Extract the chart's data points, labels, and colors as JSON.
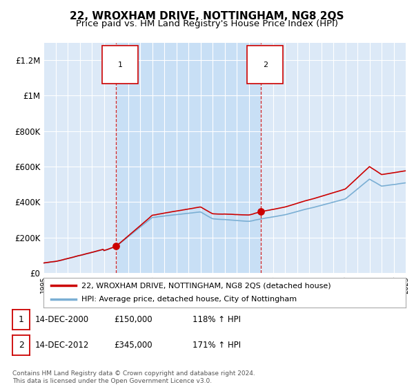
{
  "title": "22, WROXHAM DRIVE, NOTTINGHAM, NG8 2QS",
  "subtitle": "Price paid vs. HM Land Registry's House Price Index (HPI)",
  "ylim": [
    0,
    1300000
  ],
  "yticks": [
    0,
    200000,
    400000,
    600000,
    800000,
    1000000,
    1200000
  ],
  "ytick_labels": [
    "£0",
    "£200K",
    "£400K",
    "£600K",
    "£800K",
    "£1M",
    "£1.2M"
  ],
  "x_start_year": 1995,
  "x_end_year": 2025,
  "background_color": "#ffffff",
  "plot_bg_color": "#dce9f7",
  "plot_bg_between": "#c8dff5",
  "grid_color": "#ffffff",
  "sale1_year": 2001.0,
  "sale1_price": 150000,
  "sale2_year": 2013.0,
  "sale2_price": 345000,
  "property_line_color": "#cc0000",
  "hpi_line_color": "#7bafd4",
  "legend_property": "22, WROXHAM DRIVE, NOTTINGHAM, NG8 2QS (detached house)",
  "legend_hpi": "HPI: Average price, detached house, City of Nottingham",
  "annotation1_date": "14-DEC-2000",
  "annotation1_price": "£150,000",
  "annotation1_hpi": "118% ↑ HPI",
  "annotation2_date": "14-DEC-2012",
  "annotation2_price": "£345,000",
  "annotation2_hpi": "171% ↑ HPI",
  "footer": "Contains HM Land Registry data © Crown copyright and database right 2024.\nThis data is licensed under the Open Government Licence v3.0.",
  "title_fontsize": 11,
  "subtitle_fontsize": 9.5
}
